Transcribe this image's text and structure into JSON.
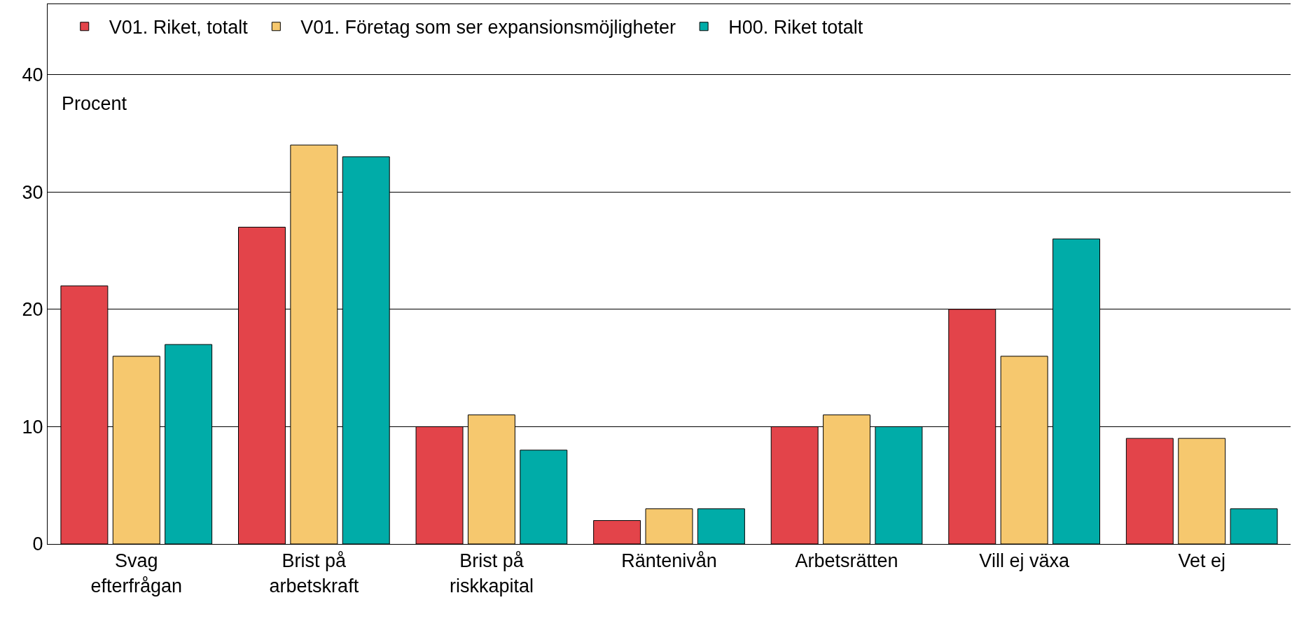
{
  "chart_data": {
    "type": "bar",
    "ylabel": "Procent",
    "categories": [
      "Svag\nefterfrågan",
      "Brist på\narbetskraft",
      "Brist på\nriskkapital",
      "Räntenivån",
      "Arbetsrätten",
      "Vill ej växa",
      "Vet ej"
    ],
    "series": [
      {
        "name": "V01. Riket, totalt",
        "color": "#e3444a",
        "values": [
          22,
          27,
          10,
          2,
          10,
          20,
          9
        ]
      },
      {
        "name": "V01. Företag som ser expansionsmöjligheter",
        "color": "#f6c86e",
        "values": [
          16,
          34,
          11,
          3,
          11,
          16,
          9
        ]
      },
      {
        "name": "H00. Riket totalt",
        "color": "#00aca8",
        "values": [
          17,
          33,
          8,
          3,
          10,
          26,
          3
        ]
      }
    ],
    "ylim": [
      0,
      46
    ],
    "yticks": [
      0,
      10,
      20,
      30,
      40
    ],
    "grid": "y",
    "legend": "top left"
  }
}
